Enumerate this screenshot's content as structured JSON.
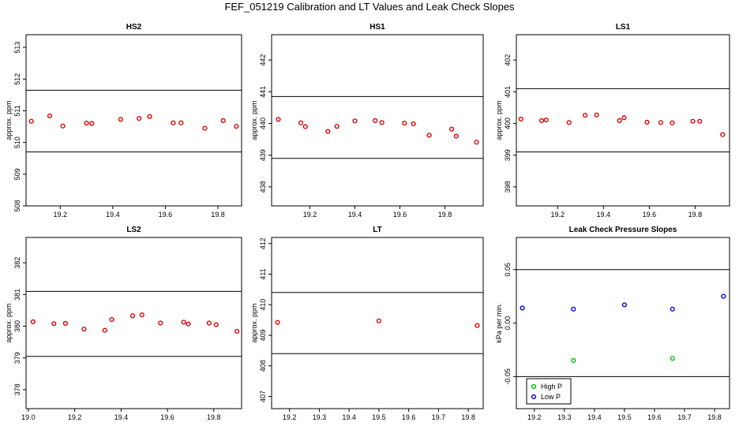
{
  "page": {
    "title": "FEF_051219  Calibration and LT Values and Leak Check Slopes"
  },
  "chart_data": [
    {
      "type": "scatter",
      "title": "HS2",
      "ylabel": "approx. ppm",
      "xlim": [
        19.07,
        19.89
      ],
      "ylim": [
        508.0,
        513.4
      ],
      "xticks": [
        "19.2",
        "19.4",
        "19.6",
        "19.8"
      ],
      "yticks": [
        "508",
        "509",
        "510",
        "511",
        "512",
        "513"
      ],
      "hlines": [
        511.65,
        509.7
      ],
      "series": [
        {
          "color": "#dd0000",
          "points": [
            [
              19.09,
              510.67
            ],
            [
              19.16,
              510.84
            ],
            [
              19.21,
              510.52
            ],
            [
              19.3,
              510.61
            ],
            [
              19.32,
              510.6
            ],
            [
              19.43,
              510.73
            ],
            [
              19.5,
              510.76
            ],
            [
              19.54,
              510.82
            ],
            [
              19.63,
              510.62
            ],
            [
              19.66,
              510.62
            ],
            [
              19.75,
              510.45
            ],
            [
              19.82,
              510.69
            ],
            [
              19.87,
              510.51
            ]
          ]
        }
      ]
    },
    {
      "type": "scatter",
      "title": "HS1",
      "ylabel": "approx. ppm",
      "xlim": [
        19.03,
        19.97
      ],
      "ylim": [
        437.4,
        442.8
      ],
      "xticks": [
        "19.2",
        "19.4",
        "19.6",
        "19.8"
      ],
      "yticks": [
        "438",
        "439",
        "440",
        "441",
        "442"
      ],
      "hlines": [
        440.85,
        438.9
      ],
      "series": [
        {
          "color": "#dd0000",
          "points": [
            [
              19.06,
              440.13
            ],
            [
              19.16,
              440.02
            ],
            [
              19.18,
              439.9
            ],
            [
              19.28,
              439.75
            ],
            [
              19.32,
              439.91
            ],
            [
              19.4,
              440.08
            ],
            [
              19.49,
              440.09
            ],
            [
              19.52,
              440.03
            ],
            [
              19.62,
              440.01
            ],
            [
              19.66,
              439.99
            ],
            [
              19.73,
              439.63
            ],
            [
              19.83,
              439.82
            ],
            [
              19.85,
              439.6
            ],
            [
              19.94,
              439.41
            ]
          ]
        }
      ]
    },
    {
      "type": "scatter",
      "title": "LS1",
      "ylabel": "approx. ppm",
      "xlim": [
        19.02,
        19.95
      ],
      "ylim": [
        397.4,
        402.8
      ],
      "xticks": [
        "19.2",
        "19.4",
        "19.6",
        "19.8"
      ],
      "yticks": [
        "398",
        "399",
        "400",
        "401",
        "402"
      ],
      "hlines": [
        401.1,
        399.1
      ],
      "series": [
        {
          "color": "#dd0000",
          "points": [
            [
              19.04,
              400.14
            ],
            [
              19.13,
              400.09
            ],
            [
              19.15,
              400.11
            ],
            [
              19.25,
              400.03
            ],
            [
              19.32,
              400.26
            ],
            [
              19.37,
              400.27
            ],
            [
              19.47,
              400.09
            ],
            [
              19.49,
              400.18
            ],
            [
              19.59,
              400.04
            ],
            [
              19.65,
              400.03
            ],
            [
              19.7,
              400.02
            ],
            [
              19.79,
              400.07
            ],
            [
              19.82,
              400.07
            ],
            [
              19.92,
              399.65
            ]
          ]
        }
      ]
    },
    {
      "type": "scatter",
      "title": "LS2",
      "ylabel": "approx. ppm",
      "xlim": [
        18.99,
        19.92
      ],
      "ylim": [
        377.4,
        382.8
      ],
      "xticks": [
        "19.0",
        "19.2",
        "19.4",
        "19.6",
        "19.8"
      ],
      "yticks": [
        "378",
        "379",
        "380",
        "381",
        "382"
      ],
      "hlines": [
        381.1,
        379.05
      ],
      "series": [
        {
          "color": "#dd0000",
          "points": [
            [
              19.02,
              380.14
            ],
            [
              19.11,
              380.08
            ],
            [
              19.16,
              380.09
            ],
            [
              19.24,
              379.91
            ],
            [
              19.33,
              379.87
            ],
            [
              19.36,
              380.21
            ],
            [
              19.45,
              380.33
            ],
            [
              19.49,
              380.36
            ],
            [
              19.57,
              380.1
            ],
            [
              19.67,
              380.13
            ],
            [
              19.69,
              380.07
            ],
            [
              19.78,
              380.1
            ],
            [
              19.81,
              380.05
            ],
            [
              19.9,
              379.84
            ]
          ]
        }
      ]
    },
    {
      "type": "scatter",
      "title": "LT",
      "ylabel": "approx. ppm",
      "xlim": [
        19.14,
        19.85
      ],
      "ylim": [
        406.6,
        412.2
      ],
      "xticks": [
        "19.2",
        "19.3",
        "19.4",
        "19.5",
        "19.6",
        "19.7",
        "19.8"
      ],
      "yticks": [
        "407",
        "408",
        "409",
        "410",
        "411",
        "412"
      ],
      "hlines": [
        410.4,
        408.4
      ],
      "series": [
        {
          "color": "#dd0000",
          "points": [
            [
              19.16,
              409.42
            ],
            [
              19.5,
              409.47
            ],
            [
              19.83,
              409.32
            ]
          ]
        }
      ]
    },
    {
      "type": "scatter",
      "title": "Leak Check Pressure Slopes",
      "ylabel": "kPa per min.",
      "xlim": [
        19.14,
        19.85
      ],
      "ylim": [
        -0.08,
        0.08
      ],
      "xticks": [
        "19.2",
        "19.3",
        "19.4",
        "19.5",
        "19.6",
        "19.7",
        "19.8"
      ],
      "yticks": [
        "-0.05",
        "0.00",
        "0.05"
      ],
      "hlines": [
        0.05,
        -0.05
      ],
      "legend": {
        "position": "bottom-left"
      },
      "series": [
        {
          "name": "High P",
          "color": "#00bb00",
          "points": [
            [
              19.33,
              -0.035
            ],
            [
              19.66,
              -0.033
            ]
          ]
        },
        {
          "name": "Low P",
          "color": "#0000dd",
          "points": [
            [
              19.16,
              0.014
            ],
            [
              19.33,
              0.013
            ],
            [
              19.5,
              0.017
            ],
            [
              19.66,
              0.013
            ],
            [
              19.83,
              0.025
            ]
          ]
        }
      ]
    }
  ]
}
